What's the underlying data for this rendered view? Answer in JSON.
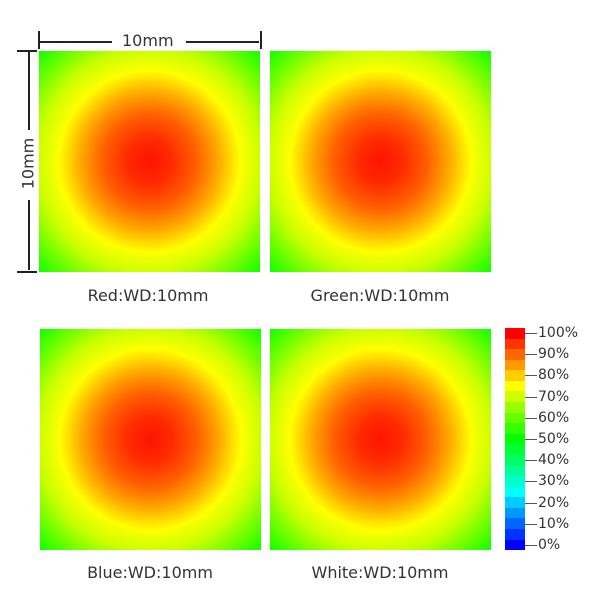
{
  "dimension": {
    "width_label": "10mm",
    "height_label": "10mm"
  },
  "panels": [
    {
      "label": "Red:WD:10mm"
    },
    {
      "label": "Green:WD:10mm"
    },
    {
      "label": "Blue:WD:10mm"
    },
    {
      "label": "White:WD:10mm"
    }
  ],
  "colorbar": {
    "ticks": [
      "100%",
      "90%",
      "80%",
      "70%",
      "60%",
      "50%",
      "40%",
      "30%",
      "20%",
      "10%",
      "0%"
    ],
    "top_color": "#ff0000",
    "mid_color": "#00ff00",
    "bottom_color": "#0000ff"
  }
}
